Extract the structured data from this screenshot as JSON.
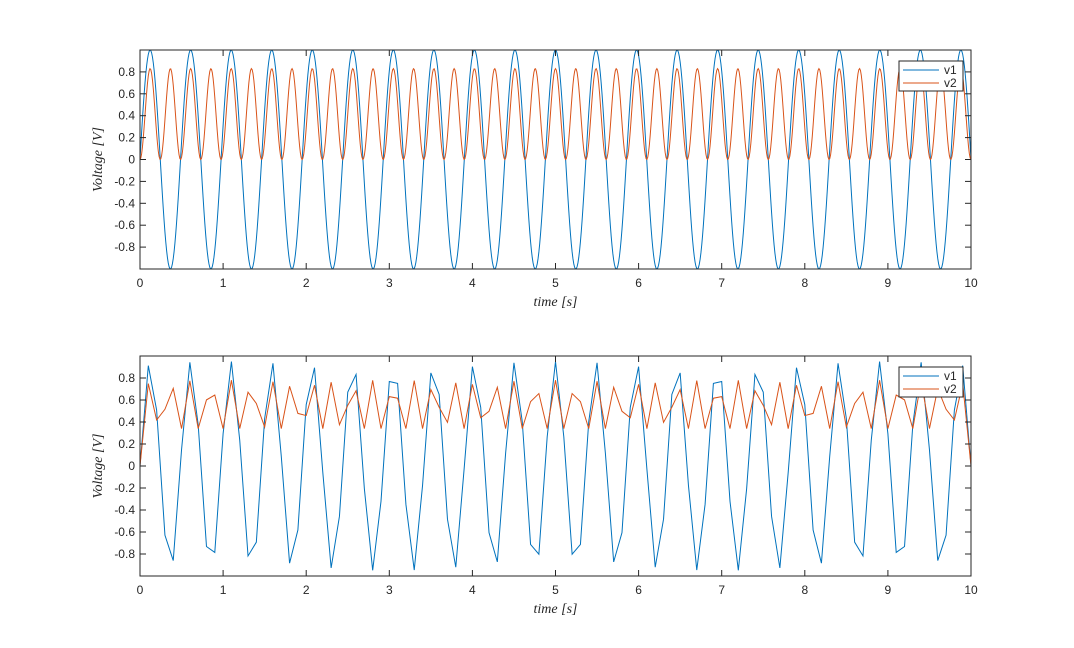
{
  "chart_data": [
    {
      "type": "line",
      "xlabel": "time [s]",
      "ylabel": "Voltage [V]",
      "xlim": [
        0,
        10
      ],
      "ylim": [
        -1,
        1
      ],
      "xticks": [
        0,
        1,
        2,
        3,
        4,
        5,
        6,
        7,
        8,
        9,
        10
      ],
      "yticks": [
        -0.8,
        -0.6,
        -0.4,
        -0.2,
        0,
        0.2,
        0.4,
        0.6,
        0.8
      ],
      "legend_position": "top-right",
      "grid": false,
      "sample_step": 0.01,
      "series": [
        {
          "name": "v1",
          "color": "#0072BD",
          "function": "sin",
          "frequency_hz": 2.05,
          "amplitude": 1.0
        },
        {
          "name": "v2",
          "color": "#D95319",
          "function": "rectified-sin-squared",
          "frequency_hz": 4.1,
          "amplitude": 0.83
        }
      ]
    },
    {
      "type": "line",
      "xlabel": "time [s]",
      "ylabel": "Voltage [V]",
      "xlim": [
        0,
        10
      ],
      "ylim": [
        -1,
        1
      ],
      "xticks": [
        0,
        1,
        2,
        3,
        4,
        5,
        6,
        7,
        8,
        9,
        10
      ],
      "yticks": [
        -0.8,
        -0.6,
        -0.4,
        -0.2,
        0,
        0.2,
        0.4,
        0.6,
        0.8
      ],
      "legend_position": "top-right",
      "grid": false,
      "sample_step": 0.1,
      "series": [
        {
          "name": "v1",
          "color": "#0072BD",
          "function": "sin",
          "frequency_hz": 2.05,
          "amplitude": 0.95
        },
        {
          "name": "v2",
          "color": "#D95319",
          "function": "rectified-sin-clipped",
          "frequency_hz": 4.1,
          "amplitude": 0.78,
          "floor": 0.34
        }
      ]
    }
  ]
}
